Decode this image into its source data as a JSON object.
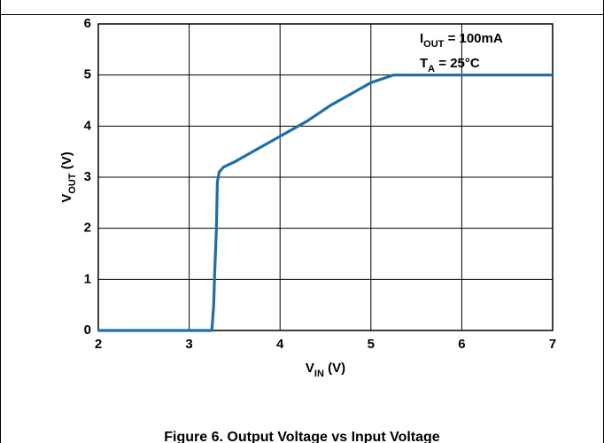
{
  "chart_data": {
    "type": "line",
    "caption": "Figure 6. Output Voltage vs Input Voltage",
    "xlabel": [
      "V",
      "IN",
      " (V)"
    ],
    "ylabel": [
      "V",
      "OUT",
      " (V)"
    ],
    "annotations": [
      [
        "I",
        "OUT",
        " = 100mA"
      ],
      [
        "T",
        "A",
        " = 25°C"
      ]
    ],
    "x": [
      2,
      3.25,
      3.27,
      3.28,
      3.3,
      3.31,
      3.33,
      3.38,
      3.5,
      3.7,
      4,
      4.3,
      4.55,
      4.8,
      5,
      5.25,
      7
    ],
    "series": [
      {
        "color": "#1f6ea8",
        "values": [
          0,
          0,
          0.5,
          1.1,
          2.0,
          2.9,
          3.1,
          3.2,
          3.3,
          3.5,
          3.8,
          4.1,
          4.4,
          4.65,
          4.85,
          5,
          5
        ]
      }
    ],
    "xlim": [
      2,
      7
    ],
    "xticks": [
      2,
      3,
      4,
      5,
      6,
      7
    ],
    "ylim": [
      0,
      6
    ],
    "yticks": [
      0,
      1,
      2,
      3,
      4,
      5,
      6
    ],
    "grid": true
  }
}
